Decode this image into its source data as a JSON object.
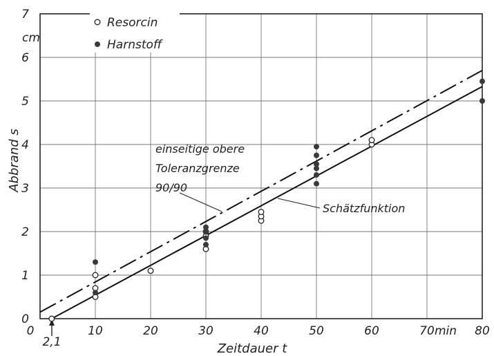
{
  "chart_data": {
    "type": "scatter",
    "xlabel": "Zeitdauer t",
    "ylabel": "Abbrand s",
    "x_unit": "min",
    "y_unit": "cm",
    "xlim": [
      0,
      80
    ],
    "ylim": [
      0,
      7
    ],
    "x_ticks": [
      "0",
      "10",
      "20",
      "30",
      "40",
      "50",
      "60",
      "70",
      "80"
    ],
    "y_ticks": [
      "0",
      "1",
      "2",
      "3",
      "4",
      "5",
      "6",
      "7"
    ],
    "x_special_tick": "2,1",
    "x_special_value": 2.1,
    "grid": true,
    "legend_position": "top-left",
    "series": [
      {
        "name": "Resorcin",
        "marker": "open-circle",
        "points": [
          [
            2.1,
            0.0
          ],
          [
            10,
            0.5
          ],
          [
            10,
            0.7
          ],
          [
            10,
            1.0
          ],
          [
            20,
            1.1
          ],
          [
            30,
            1.6
          ],
          [
            30,
            1.9
          ],
          [
            30,
            2.0
          ],
          [
            40,
            2.25
          ],
          [
            40,
            2.35
          ],
          [
            40,
            2.45
          ],
          [
            60,
            4.0
          ],
          [
            60,
            4.1
          ]
        ]
      },
      {
        "name": "Harnstoff",
        "marker": "filled-circle",
        "points": [
          [
            10,
            0.6
          ],
          [
            10,
            1.3
          ],
          [
            30,
            1.7
          ],
          [
            30,
            1.85
          ],
          [
            30,
            2.0
          ],
          [
            30,
            2.1
          ],
          [
            50,
            3.1
          ],
          [
            50,
            3.3
          ],
          [
            50,
            3.45
          ],
          [
            50,
            3.55
          ],
          [
            50,
            3.75
          ],
          [
            50,
            3.95
          ],
          [
            80,
            5.0
          ],
          [
            80,
            5.45
          ]
        ]
      }
    ],
    "lines": [
      {
        "name": "Schätzfunktion",
        "style": "solid",
        "from": [
          2.1,
          0.0
        ],
        "to": [
          80,
          5.33
        ]
      },
      {
        "name": "einseitige obere Toleranzgrenze 90/90",
        "style": "dashdot",
        "from": [
          0,
          0.15
        ],
        "to": [
          80,
          5.7
        ]
      }
    ]
  },
  "labels": {
    "y_unit": "cm",
    "x_unit": "min",
    "xlabel": "Zeitdauer t",
    "ylabel": "Abbrand s",
    "x_special_tick": "2,1",
    "legend": {
      "resorcin": "Resorcin",
      "harnstoff": "Harnstoff"
    },
    "annotations": {
      "tolerance_line1": "einseitige obere",
      "tolerance_line2": "Toleranzgrenze",
      "tolerance_line3": "90/90",
      "estimate": "Schätzfunktion"
    }
  }
}
